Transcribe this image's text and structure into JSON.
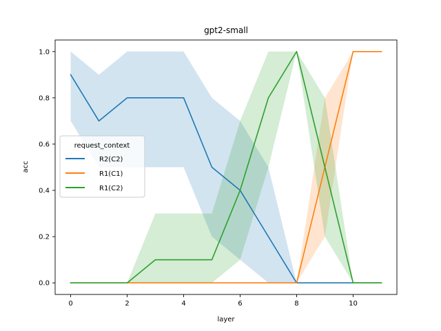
{
  "chart_data": {
    "type": "line",
    "title": "gpt2-small",
    "xlabel": "layer",
    "ylabel": "acc",
    "xlim": [
      -0.55,
      11.55
    ],
    "ylim": [
      -0.05,
      1.05
    ],
    "xticks": [
      0,
      2,
      4,
      6,
      8,
      10
    ],
    "yticks": [
      0.0,
      0.2,
      0.4,
      0.6,
      0.8,
      1.0
    ],
    "ytick_labels": [
      "0.0",
      "0.2",
      "0.4",
      "0.6",
      "0.8",
      "1.0"
    ],
    "grid": false,
    "legend": {
      "title": "request_context",
      "placement": "center-left"
    },
    "x": [
      0,
      1,
      2,
      3,
      4,
      5,
      6,
      7,
      8,
      9,
      10,
      11
    ],
    "series": [
      {
        "name": "R2(C2)",
        "color": "#1f77b4",
        "values": [
          0.9,
          0.7,
          0.8,
          0.8,
          0.8,
          0.5,
          0.4,
          0.2,
          0.0,
          0.0,
          0.0,
          0.0
        ],
        "ci_low": [
          0.7,
          0.5,
          0.5,
          0.5,
          0.5,
          0.2,
          0.1,
          0.0,
          0.0,
          0.0,
          0.0,
          0.0
        ],
        "ci_high": [
          1.0,
          0.9,
          1.0,
          1.0,
          1.0,
          0.8,
          0.7,
          0.5,
          0.0,
          0.0,
          0.0,
          0.0
        ]
      },
      {
        "name": "R1(C1)",
        "color": "#ff7f0e",
        "values": [
          0.0,
          0.0,
          0.0,
          0.0,
          0.0,
          0.0,
          0.0,
          0.0,
          0.0,
          0.5,
          1.0,
          1.0
        ],
        "ci_low": [
          0.0,
          0.0,
          0.0,
          0.0,
          0.0,
          0.0,
          0.0,
          0.0,
          0.0,
          0.2,
          1.0,
          1.0
        ],
        "ci_high": [
          0.0,
          0.0,
          0.0,
          0.0,
          0.0,
          0.0,
          0.0,
          0.0,
          0.0,
          0.8,
          1.0,
          1.0
        ]
      },
      {
        "name": "R1(C2)",
        "color": "#2ca02c",
        "values": [
          0.0,
          0.0,
          0.0,
          0.1,
          0.1,
          0.1,
          0.4,
          0.8,
          1.0,
          0.5,
          0.0,
          0.0
        ],
        "ci_low": [
          0.0,
          0.0,
          0.0,
          0.0,
          0.0,
          0.0,
          0.1,
          0.5,
          1.0,
          0.2,
          0.0,
          0.0
        ],
        "ci_high": [
          0.0,
          0.0,
          0.0,
          0.3,
          0.3,
          0.3,
          0.7,
          1.0,
          1.0,
          0.8,
          0.0,
          0.0
        ]
      }
    ]
  }
}
